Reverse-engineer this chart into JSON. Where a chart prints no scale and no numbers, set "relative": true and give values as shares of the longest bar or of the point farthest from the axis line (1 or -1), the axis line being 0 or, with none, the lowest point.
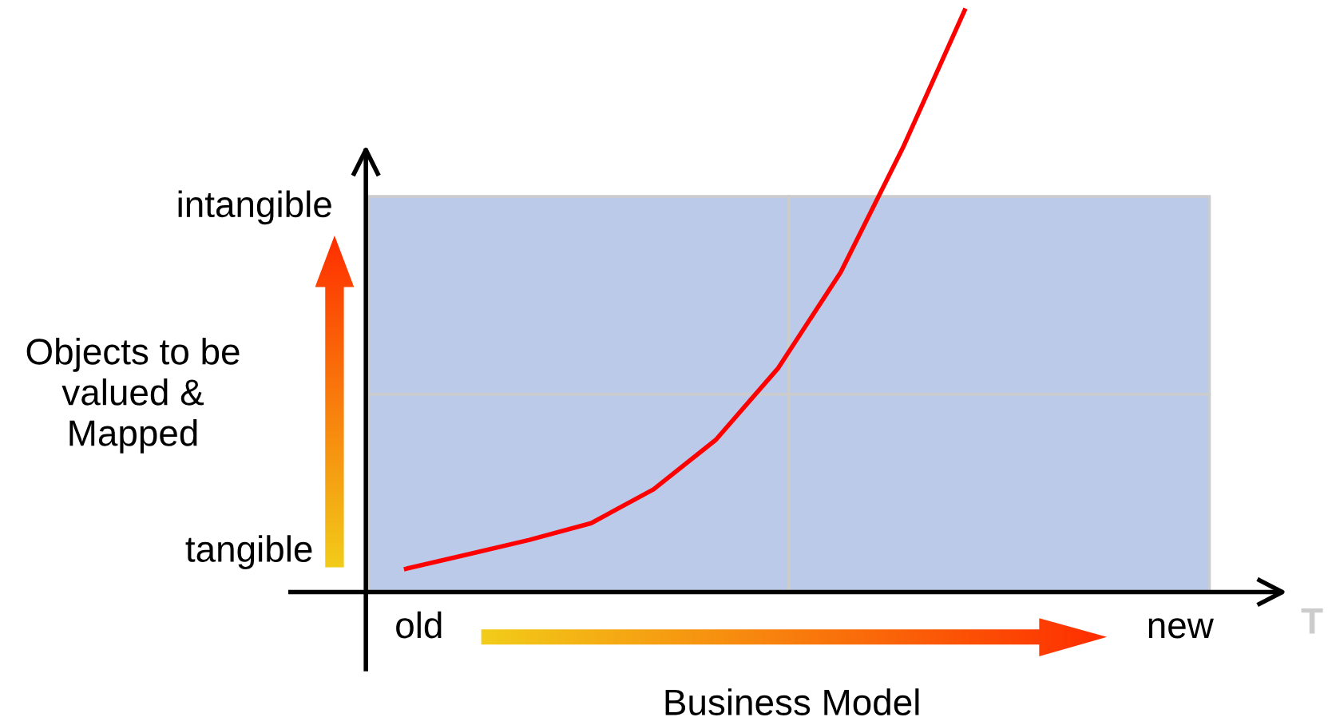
{
  "chart_data": {
    "type": "line",
    "relative": true,
    "marker": "none",
    "line_style": "solid",
    "xlabel": "Business Model",
    "ylabel": "Objects to be\nvalued &\nMapped",
    "categories": [
      null,
      null,
      null,
      null,
      null,
      null,
      null,
      null,
      null,
      null
    ],
    "series": [
      {
        "color": "#ff0000",
        "values": [
          0.039,
          0.064,
          0.089,
          0.118,
          0.176,
          0.261,
          0.384,
          0.548,
          0.762,
          1.0
        ]
      }
    ],
    "annotations": [
      "intangible",
      "tangible",
      "old",
      "new",
      "T"
    ]
  }
}
